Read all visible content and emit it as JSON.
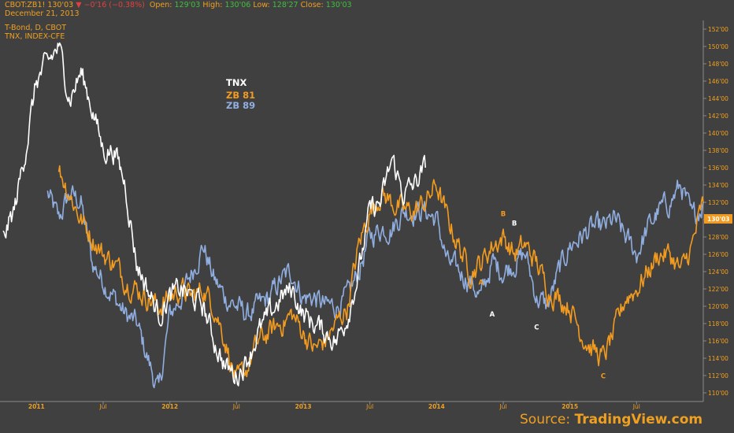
{
  "header": {
    "symbol": "CBOT:ZB1!",
    "price": "130'03",
    "change": "−0'16 (−0.38%)",
    "open_label": "Open:",
    "open_value": "129'03",
    "high_label": "High:",
    "high_value": "130'06",
    "low_label": "Low:",
    "low_value": "128'27",
    "close_label": "Close:",
    "close_value": "130'03",
    "date": "December 21, 2013",
    "series1_title": "T-Bond, D, CBOT",
    "series2_title": "TNX, INDEX-CFE"
  },
  "legend": {
    "tnx": "TNX",
    "zb81": "ZB 81",
    "zb89": "ZB 89"
  },
  "source": {
    "prefix": "Source: ",
    "brand": "TradingView.com"
  },
  "colors": {
    "background": "#404040",
    "tnx": "#ffffff",
    "zb81": "#f29b1f",
    "zb89": "#90aee0",
    "axis_text": "#f0a020",
    "price_tag": "#f29b1f"
  },
  "chart_data": {
    "type": "line",
    "y_axis": {
      "side": "right",
      "ylim": [
        "109'00",
        "153'00"
      ],
      "ticks": [
        "110'00",
        "112'00",
        "114'00",
        "116'00",
        "118'00",
        "120'00",
        "122'00",
        "124'00",
        "126'00",
        "128'00",
        "130'00",
        "132'00",
        "134'00",
        "136'00",
        "138'00",
        "140'00",
        "142'00",
        "144'00",
        "146'00",
        "148'00",
        "150'00",
        "152'00"
      ],
      "last_price_tag": "130'03"
    },
    "x_axis": {
      "ticks": [
        "2011",
        "Jul",
        "2012",
        "Jul",
        "2013",
        "Jul",
        "2014",
        "Jul",
        "2015",
        "Jul"
      ],
      "tick_dates": [
        "2011-01",
        "2011-07",
        "2012-01",
        "2012-07",
        "2013-01",
        "2013-07",
        "2014-01",
        "2014-07",
        "2015-01",
        "2015-07"
      ],
      "range": [
        "2010-10",
        "2016-01"
      ]
    },
    "grid": false,
    "legend_position": "top-left",
    "series": [
      {
        "name": "TNX",
        "color": "#ffffff",
        "points": [
          [
            "2010-10",
            128
          ],
          [
            "2010-11",
            131
          ],
          [
            "2010-12",
            138
          ],
          [
            "2011-01",
            146
          ],
          [
            "2011-02",
            148
          ],
          [
            "2011-03",
            150
          ],
          [
            "2011-04",
            144
          ],
          [
            "2011-05",
            147
          ],
          [
            "2011-06",
            143
          ],
          [
            "2011-07",
            138
          ],
          [
            "2011-08",
            138
          ],
          [
            "2011-09",
            134
          ],
          [
            "2011-10",
            125
          ],
          [
            "2011-11",
            122
          ],
          [
            "2011-12",
            119
          ],
          [
            "2012-01",
            121
          ],
          [
            "2012-02",
            122
          ],
          [
            "2012-03",
            121
          ],
          [
            "2012-04",
            120
          ],
          [
            "2012-05",
            116
          ],
          [
            "2012-06",
            113
          ],
          [
            "2012-07",
            112
          ],
          [
            "2012-08",
            114
          ],
          [
            "2012-09",
            117
          ],
          [
            "2012-10",
            119
          ],
          [
            "2012-11",
            121
          ],
          [
            "2012-12",
            122
          ],
          [
            "2013-01",
            119
          ],
          [
            "2013-02",
            118
          ],
          [
            "2013-03",
            117
          ],
          [
            "2013-04",
            116
          ],
          [
            "2013-05",
            119
          ],
          [
            "2013-06",
            124
          ],
          [
            "2013-07",
            131
          ],
          [
            "2013-08",
            132
          ],
          [
            "2013-09",
            137
          ],
          [
            "2013-10",
            133
          ],
          [
            "2013-11",
            134
          ],
          [
            "2013-12",
            136
          ]
        ]
      },
      {
        "name": "ZB 81",
        "color": "#f29b1f",
        "points": [
          [
            "2011-03",
            136
          ],
          [
            "2011-04",
            133
          ],
          [
            "2011-05",
            130
          ],
          [
            "2011-06",
            128
          ],
          [
            "2011-07",
            126
          ],
          [
            "2011-08",
            125
          ],
          [
            "2011-09",
            123
          ],
          [
            "2011-10",
            122
          ],
          [
            "2011-11",
            121
          ],
          [
            "2011-12",
            120
          ],
          [
            "2012-01",
            121
          ],
          [
            "2012-02",
            122
          ],
          [
            "2012-03",
            121
          ],
          [
            "2012-04",
            122
          ],
          [
            "2012-05",
            120
          ],
          [
            "2012-06",
            116
          ],
          [
            "2012-07",
            111
          ],
          [
            "2012-08",
            113
          ],
          [
            "2012-09",
            116
          ],
          [
            "2012-10",
            117
          ],
          [
            "2012-11",
            118
          ],
          [
            "2012-12",
            119
          ],
          [
            "2013-01",
            117
          ],
          [
            "2013-02",
            115
          ],
          [
            "2013-03",
            116
          ],
          [
            "2013-04",
            118
          ],
          [
            "2013-05",
            120
          ],
          [
            "2013-06",
            127
          ],
          [
            "2013-07",
            131
          ],
          [
            "2013-08",
            133
          ],
          [
            "2013-09",
            132
          ],
          [
            "2013-10",
            131
          ],
          [
            "2013-11",
            131
          ],
          [
            "2013-12",
            132
          ],
          [
            "2014-01",
            134
          ],
          [
            "2014-02",
            130
          ],
          [
            "2014-03",
            127
          ],
          [
            "2014-04",
            124
          ],
          [
            "2014-05",
            125
          ],
          [
            "2014-06",
            127
          ],
          [
            "2014-07",
            128
          ],
          [
            "2014-08",
            126
          ],
          [
            "2014-09",
            127
          ],
          [
            "2014-10",
            125
          ],
          [
            "2014-11",
            122
          ],
          [
            "2014-12",
            121
          ],
          [
            "2015-01",
            120
          ],
          [
            "2015-02",
            117
          ],
          [
            "2015-03",
            115
          ],
          [
            "2015-04",
            114
          ],
          [
            "2015-05",
            117
          ],
          [
            "2015-06",
            121
          ],
          [
            "2015-07",
            122
          ],
          [
            "2015-08",
            124
          ],
          [
            "2015-09",
            126
          ],
          [
            "2015-10",
            126
          ],
          [
            "2015-11",
            124
          ],
          [
            "2015-12",
            127
          ],
          [
            "2016-01",
            132
          ]
        ]
      },
      {
        "name": "ZB 89",
        "color": "#90aee0",
        "points": [
          [
            "2011-02",
            133
          ],
          [
            "2011-03",
            130
          ],
          [
            "2011-04",
            133
          ],
          [
            "2011-05",
            132
          ],
          [
            "2011-06",
            125
          ],
          [
            "2011-07",
            123
          ],
          [
            "2011-08",
            121
          ],
          [
            "2011-09",
            119
          ],
          [
            "2011-10",
            118
          ],
          [
            "2011-11",
            114
          ],
          [
            "2011-12",
            110
          ],
          [
            "2012-01",
            119
          ],
          [
            "2012-02",
            121
          ],
          [
            "2012-03",
            124
          ],
          [
            "2012-04",
            127
          ],
          [
            "2012-05",
            123
          ],
          [
            "2012-06",
            121
          ],
          [
            "2012-07",
            120
          ],
          [
            "2012-08",
            119
          ],
          [
            "2012-09",
            120
          ],
          [
            "2012-10",
            121
          ],
          [
            "2012-11",
            123
          ],
          [
            "2012-12",
            124
          ],
          [
            "2013-01",
            121
          ],
          [
            "2013-02",
            121
          ],
          [
            "2013-03",
            120
          ],
          [
            "2013-04",
            120
          ],
          [
            "2013-05",
            121
          ],
          [
            "2013-06",
            124
          ],
          [
            "2013-07",
            128
          ],
          [
            "2013-08",
            129
          ],
          [
            "2013-09",
            129
          ],
          [
            "2013-10",
            131
          ],
          [
            "2013-11",
            131
          ],
          [
            "2013-12",
            131
          ],
          [
            "2014-01",
            130
          ],
          [
            "2014-02",
            125
          ],
          [
            "2014-03",
            124
          ],
          [
            "2014-04",
            123
          ],
          [
            "2014-05",
            121
          ],
          [
            "2014-06",
            125
          ],
          [
            "2014-07",
            124
          ],
          [
            "2014-08",
            125
          ],
          [
            "2014-09",
            126
          ],
          [
            "2014-10",
            121
          ],
          [
            "2014-11",
            120
          ],
          [
            "2014-12",
            124
          ],
          [
            "2015-01",
            127
          ],
          [
            "2015-02",
            128
          ],
          [
            "2015-03",
            129
          ],
          [
            "2015-04",
            129
          ],
          [
            "2015-05",
            130
          ],
          [
            "2015-06",
            128
          ],
          [
            "2015-07",
            126
          ],
          [
            "2015-08",
            129
          ],
          [
            "2015-09",
            131
          ],
          [
            "2015-10",
            132
          ],
          [
            "2015-11",
            134
          ],
          [
            "2015-12",
            130
          ],
          [
            "2016-01",
            132
          ]
        ]
      }
    ],
    "annotations": [
      {
        "text": "A",
        "color": "#f29b1f",
        "date": "2014-05",
        "value": 122.5
      },
      {
        "text": "B",
        "color": "#f29b1f",
        "date": "2014-07",
        "value": 130.4
      },
      {
        "text": "B",
        "color": "#ffffff",
        "date": "2014-08",
        "value": 129.3
      },
      {
        "text": "A",
        "color": "#ffffff",
        "date": "2014-06",
        "value": 118.8
      },
      {
        "text": "C",
        "color": "#ffffff",
        "date": "2014-10",
        "value": 117.3
      },
      {
        "text": "C",
        "color": "#f29b1f",
        "date": "2015-04",
        "value": 111.7
      }
    ]
  }
}
